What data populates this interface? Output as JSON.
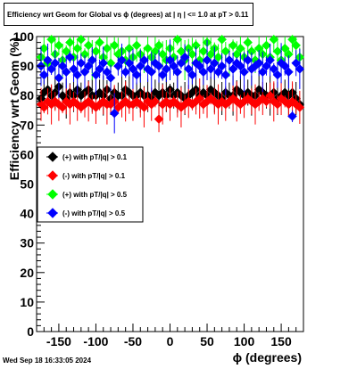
{
  "title": "Efficiency wrt Geom for Global vs ϕ (degrees) at | η | <= 1.0 at pT > 0.11",
  "timestamp": "Wed Sep 18 16:33:05 2024",
  "chart_data": {
    "type": "scatter",
    "title": "Efficiency wrt Geom for Global vs ϕ (degrees) at | η | <= 1.0 at pT > 0.11",
    "xlabel": "ϕ (degrees)",
    "ylabel": "Efficiency wrt Geom (%)",
    "xlim": [
      -180,
      180
    ],
    "ylim": [
      0,
      100
    ],
    "xticks": [
      -150,
      -100,
      -50,
      0,
      50,
      100,
      150
    ],
    "yticks": [
      0,
      10,
      20,
      30,
      40,
      50,
      60,
      70,
      80,
      90,
      100
    ],
    "grid": false,
    "legend_position": "center-left",
    "series": [
      {
        "name": "(+) with pT/|q| > 0.1",
        "color": "#000000",
        "x": [
          -174,
          -170,
          -165,
          -160,
          -155,
          -150,
          -145,
          -140,
          -135,
          -130,
          -125,
          -120,
          -115,
          -110,
          -105,
          -100,
          -95,
          -90,
          -85,
          -80,
          -75,
          -70,
          -65,
          -60,
          -55,
          -50,
          -45,
          -40,
          -35,
          -30,
          -25,
          -20,
          -15,
          -10,
          -5,
          0,
          5,
          10,
          15,
          20,
          25,
          30,
          35,
          40,
          45,
          50,
          55,
          60,
          65,
          70,
          75,
          80,
          85,
          90,
          95,
          100,
          105,
          110,
          115,
          120,
          125,
          130,
          135,
          140,
          145,
          150,
          155,
          160,
          165,
          170,
          175
        ],
        "y": [
          79,
          81,
          82,
          80,
          81,
          83,
          80,
          79,
          81,
          80,
          82,
          80,
          81,
          82,
          80,
          80,
          81,
          80,
          82,
          79,
          81,
          80,
          80,
          82,
          81,
          80,
          80,
          81,
          80,
          80,
          79,
          81,
          80,
          81,
          80,
          82,
          80,
          81,
          80,
          79,
          80,
          81,
          82,
          80,
          81,
          80,
          82,
          81,
          80,
          79,
          81,
          80,
          80,
          82,
          81,
          80,
          81,
          80,
          80,
          82,
          81,
          80,
          80,
          81,
          79,
          80,
          81,
          80,
          81,
          79,
          77
        ]
      },
      {
        "name": "(-) with pT/|q| > 0.1",
        "color": "#ff0000",
        "x": [
          -174,
          -170,
          -165,
          -160,
          -155,
          -150,
          -145,
          -140,
          -135,
          -130,
          -125,
          -120,
          -115,
          -110,
          -105,
          -100,
          -95,
          -90,
          -85,
          -80,
          -75,
          -70,
          -65,
          -60,
          -55,
          -50,
          -45,
          -40,
          -35,
          -30,
          -25,
          -20,
          -15,
          -10,
          -5,
          0,
          5,
          10,
          15,
          20,
          25,
          30,
          35,
          40,
          45,
          50,
          55,
          60,
          65,
          70,
          75,
          80,
          85,
          90,
          95,
          100,
          105,
          110,
          115,
          120,
          125,
          130,
          135,
          140,
          145,
          150,
          155,
          160,
          165,
          170,
          175
        ],
        "y": [
          77,
          76,
          78,
          77,
          78,
          77,
          76,
          78,
          77,
          78,
          77,
          76,
          77,
          78,
          77,
          76,
          77,
          78,
          77,
          77,
          78,
          76,
          77,
          78,
          77,
          77,
          78,
          77,
          76,
          78,
          77,
          78,
          72,
          77,
          78,
          77,
          78,
          77,
          76,
          77,
          78,
          77,
          78,
          79,
          77,
          78,
          79,
          78,
          77,
          78,
          77,
          78,
          79,
          78,
          77,
          78,
          79,
          78,
          77,
          78,
          79,
          78,
          80,
          78,
          77,
          79,
          78,
          77,
          78,
          77,
          76
        ]
      },
      {
        "name": "(+) with pT/|q| > 0.5",
        "color": "#00ff00",
        "x": [
          -174,
          -170,
          -165,
          -160,
          -155,
          -150,
          -145,
          -140,
          -135,
          -130,
          -125,
          -120,
          -115,
          -110,
          -105,
          -100,
          -95,
          -90,
          -85,
          -80,
          -75,
          -70,
          -65,
          -60,
          -55,
          -50,
          -45,
          -40,
          -35,
          -30,
          -25,
          -20,
          -15,
          -10,
          -5,
          0,
          5,
          10,
          15,
          20,
          25,
          30,
          35,
          40,
          45,
          50,
          55,
          60,
          65,
          70,
          75,
          80,
          85,
          90,
          95,
          100,
          105,
          110,
          115,
          120,
          125,
          130,
          135,
          140,
          145,
          150,
          155,
          160,
          165,
          170,
          175
        ],
        "y": [
          93,
          96,
          91,
          99,
          94,
          97,
          92,
          95,
          98,
          93,
          96,
          99,
          94,
          97,
          92,
          95,
          98,
          93,
          96,
          91,
          97,
          94,
          95,
          92,
          96,
          93,
          97,
          94,
          92,
          96,
          93,
          95,
          97,
          94,
          92,
          96,
          93,
          99,
          95,
          92,
          96,
          94,
          97,
          92,
          95,
          98,
          94,
          96,
          93,
          99,
          95,
          92,
          97,
          94,
          96,
          93,
          98,
          95,
          92,
          96,
          94,
          97,
          93,
          99,
          95,
          92,
          96,
          94,
          99,
          97,
          93
        ]
      },
      {
        "name": "(-) with pT/|q| > 0.5",
        "color": "#0000ff",
        "x": [
          -174,
          -170,
          -165,
          -160,
          -155,
          -150,
          -145,
          -140,
          -135,
          -130,
          -125,
          -120,
          -115,
          -110,
          -105,
          -100,
          -95,
          -90,
          -85,
          -80,
          -75,
          -70,
          -65,
          -60,
          -55,
          -50,
          -45,
          -40,
          -35,
          -30,
          -25,
          -20,
          -15,
          -10,
          -5,
          0,
          5,
          10,
          15,
          20,
          25,
          30,
          35,
          40,
          45,
          50,
          55,
          60,
          65,
          70,
          75,
          80,
          85,
          90,
          95,
          100,
          105,
          110,
          115,
          120,
          125,
          130,
          135,
          140,
          145,
          150,
          155,
          160,
          165,
          170,
          175
        ],
        "y": [
          90,
          87,
          92,
          89,
          91,
          86,
          90,
          88,
          93,
          89,
          87,
          91,
          88,
          90,
          92,
          87,
          89,
          91,
          88,
          86,
          74,
          90,
          92,
          88,
          91,
          89,
          87,
          90,
          92,
          89,
          88,
          91,
          90,
          87,
          89,
          92,
          90,
          88,
          91,
          93,
          89,
          87,
          91,
          90,
          88,
          92,
          89,
          91,
          88,
          90,
          87,
          92,
          89,
          91,
          90,
          88,
          92,
          89,
          90,
          91,
          88,
          90,
          92,
          89,
          87,
          91,
          90,
          88,
          73,
          91,
          89
        ]
      }
    ]
  }
}
